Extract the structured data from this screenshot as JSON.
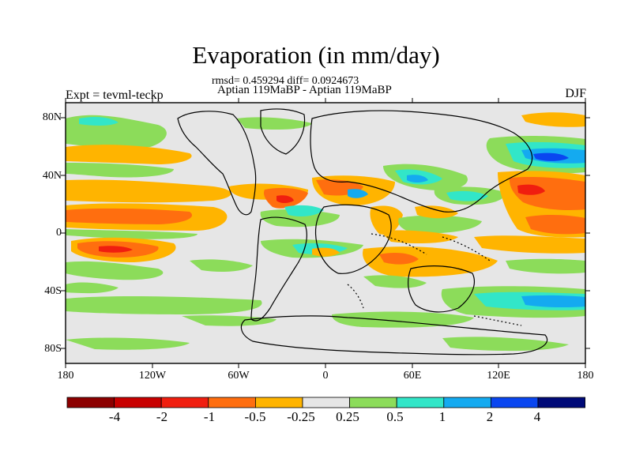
{
  "title": "Evaporation (in mm/day)",
  "stats": "rmsd= 0.459294 diff= 0.0924673",
  "subtitle": "Aptian   119MaBP - Aptian   119MaBP",
  "expt_label": "Expt = tevml-teckp",
  "season": "DJF",
  "lat_labels": [
    "80N",
    "40N",
    "0",
    "40S",
    "80S"
  ],
  "lon_labels": [
    "180",
    "120W",
    "60W",
    "0",
    "60E",
    "120E",
    "180"
  ],
  "colorbar": {
    "labels": [
      "-4",
      "-2",
      "-1",
      "-0.5",
      "-0.25",
      "0.25",
      "0.5",
      "1",
      "2",
      "4"
    ],
    "colors": [
      "#8c0000",
      "#c80000",
      "#f01e0f",
      "#ff6e0f",
      "#ffb400",
      "#e6e6e6",
      "#8cdc5a",
      "#32e6c8",
      "#14aaf0",
      "#0a46f0",
      "#000a78"
    ]
  },
  "field_colors": {
    "background": "#e6e6e6",
    "neg_strong": "#f01e0f",
    "neg_mid": "#ff6e0f",
    "neg_weak": "#ffb400",
    "pos_weak": "#8cdc5a",
    "pos_mid": "#32e6c8",
    "pos_strong": "#14aaf0",
    "pos_max": "#0a46f0"
  }
}
